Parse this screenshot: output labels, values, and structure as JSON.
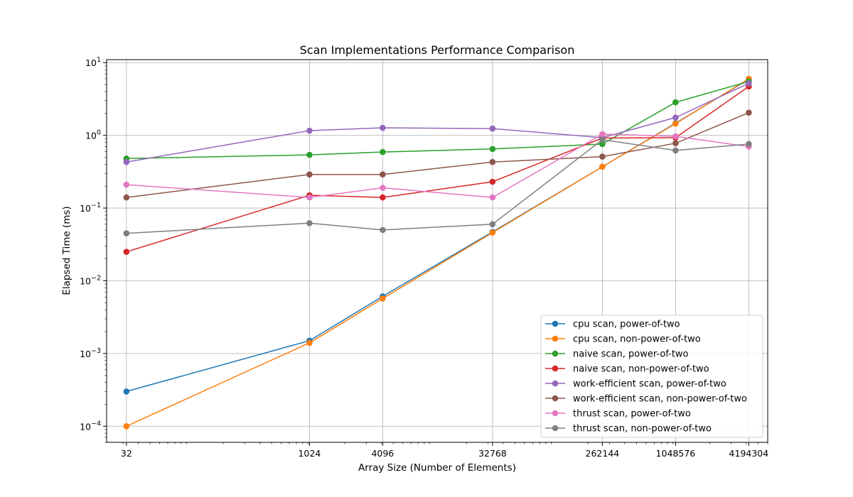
{
  "chart_data": {
    "type": "line",
    "title": "Scan Implementations Performance Comparison",
    "xlabel": "Array Size (Number of Elements)",
    "ylabel": "Elapsed Time (ms)",
    "xscale": "log2",
    "yscale": "log10",
    "xlim": [
      22,
      6000000
    ],
    "ylim": [
      6e-05,
      11
    ],
    "grid": true,
    "legend_position": "lower-right",
    "x_ticks": [
      32,
      1024,
      4096,
      32768,
      262144,
      1048576,
      4194304
    ],
    "x_tick_labels": [
      "32",
      "1024",
      "4096",
      "32768",
      "262144",
      "1048576",
      "4194304"
    ],
    "y_ticks": [
      {
        "value": 0.0001,
        "base": "10",
        "exp": "−4"
      },
      {
        "value": 0.001,
        "base": "10",
        "exp": "−3"
      },
      {
        "value": 0.01,
        "base": "10",
        "exp": "−2"
      },
      {
        "value": 0.1,
        "base": "10",
        "exp": "−1"
      },
      {
        "value": 1,
        "base": "10",
        "exp": "0"
      },
      {
        "value": 10,
        "base": "10",
        "exp": "1"
      }
    ],
    "x": [
      32,
      1024,
      4096,
      32768,
      262144,
      1048576,
      4194304
    ],
    "series": [
      {
        "name": "cpu scan, power-of-two",
        "color": "#1f77b4",
        "values": [
          0.0003,
          0.0015,
          0.0061,
          0.047,
          0.37,
          1.47,
          5.9
        ]
      },
      {
        "name": "cpu scan, non-power-of-two",
        "color": "#ff7f0e",
        "values": [
          0.0001,
          0.0014,
          0.0057,
          0.046,
          0.37,
          1.45,
          6.0
        ]
      },
      {
        "name": "naive scan, power-of-two",
        "color": "#2ca02c",
        "values": [
          0.48,
          0.54,
          0.59,
          0.65,
          0.76,
          2.85,
          5.5
        ]
      },
      {
        "name": "naive scan, non-power-of-two",
        "color": "#d62728",
        "values": [
          0.025,
          0.15,
          0.14,
          0.23,
          0.92,
          0.93,
          4.7
        ]
      },
      {
        "name": "work-efficient scan, power-of-two",
        "color": "#9467bd",
        "values": [
          0.43,
          1.16,
          1.27,
          1.24,
          0.93,
          1.76,
          5.2
        ]
      },
      {
        "name": "work-efficient scan, non-power-of-two",
        "color": "#8c564b",
        "values": [
          0.14,
          0.29,
          0.29,
          0.43,
          0.51,
          0.78,
          2.05
        ]
      },
      {
        "name": "thrust scan, power-of-two",
        "color": "#e377c2",
        "values": [
          0.21,
          0.14,
          0.19,
          0.14,
          1.04,
          0.97,
          0.7
        ]
      },
      {
        "name": "thrust scan, non-power-of-two",
        "color": "#7f7f7f",
        "values": [
          0.045,
          0.062,
          0.05,
          0.06,
          0.87,
          0.62,
          0.76
        ]
      }
    ]
  }
}
